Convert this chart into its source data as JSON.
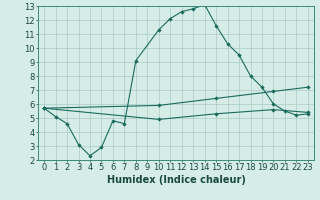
{
  "title": "",
  "xlabel": "Humidex (Indice chaleur)",
  "ylabel": "",
  "background_color": "#d6ece6",
  "line_color": "#1a6b5e",
  "grid_color": "#aaccc4",
  "xlim": [
    -0.5,
    23.5
  ],
  "ylim": [
    2,
    13
  ],
  "xticks": [
    0,
    1,
    2,
    3,
    4,
    5,
    6,
    7,
    8,
    9,
    10,
    11,
    12,
    13,
    14,
    15,
    16,
    17,
    18,
    19,
    20,
    21,
    22,
    23
  ],
  "yticks": [
    2,
    3,
    4,
    5,
    6,
    7,
    8,
    9,
    10,
    11,
    12,
    13
  ],
  "line1_x": [
    0,
    1,
    2,
    3,
    4,
    5,
    6,
    7,
    8,
    10,
    11,
    12,
    13,
    14,
    15,
    16,
    17,
    18,
    19,
    20,
    21,
    22,
    23
  ],
  "line1_y": [
    5.7,
    5.1,
    4.6,
    3.1,
    2.3,
    2.9,
    4.8,
    4.6,
    9.1,
    11.3,
    12.1,
    12.6,
    12.8,
    13.1,
    11.6,
    10.3,
    9.5,
    8.0,
    7.2,
    6.0,
    5.5,
    5.2,
    5.3
  ],
  "line2_x": [
    0,
    10,
    15,
    20,
    23
  ],
  "line2_y": [
    5.7,
    5.9,
    6.4,
    6.9,
    7.2
  ],
  "line3_x": [
    0,
    10,
    15,
    20,
    23
  ],
  "line3_y": [
    5.7,
    4.9,
    5.3,
    5.6,
    5.4
  ],
  "font_size_ticks": 6,
  "font_size_xlabel": 7
}
